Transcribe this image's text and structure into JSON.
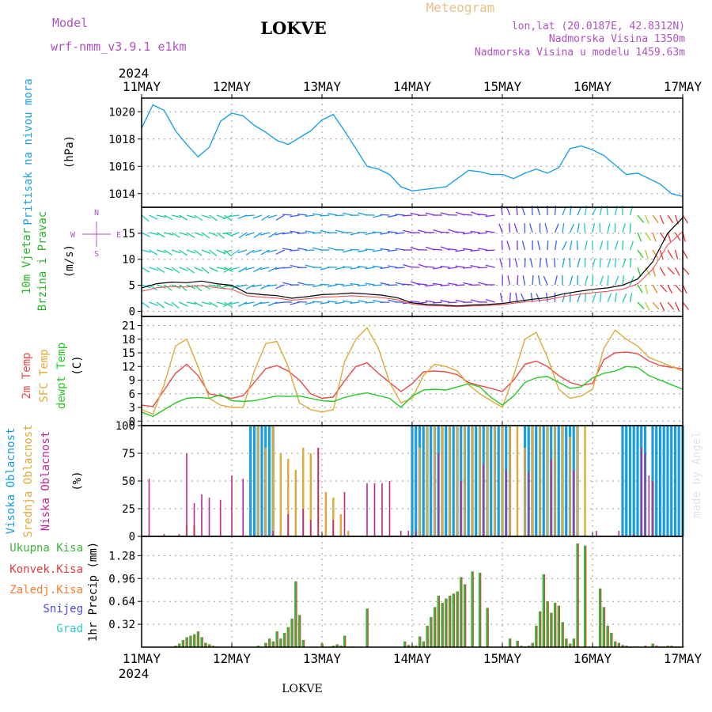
{
  "header": {
    "model_label": "Model",
    "model_name": "wrf-nmm_v3.9.1 e1km",
    "station": "LOKVE",
    "title": "Meteogram",
    "coords": "lon,lat (20.0187E, 42.8312N)",
    "elevation": "Nadmorska Visina 1350m",
    "model_elevation": "Nadmorska Visina u modelu 1459.63m",
    "credit": "made by Angel",
    "footer_station": "LOKVE"
  },
  "colors": {
    "pressure": "#1ea0e6",
    "sfc_temp": "#e0a838",
    "temp_2m": "#e84848",
    "dewpoint": "#28c828",
    "high_cloud": "#1a9ce0",
    "mid_cloud": "#e0a838",
    "low_cloud": "#c02890",
    "precip_total": "#3cb43c",
    "precip_conv": "#e03c3c",
    "precip_frz": "#f08030",
    "snow": "#4848e0",
    "graupel": "#30c8c8",
    "wind_label": "#28b428",
    "axis_purple": "#b050c8"
  },
  "chart_data": [
    {
      "type": "line",
      "title": "Pritisak na nivou mora",
      "ylabel": "Pritisak na nivou mora",
      "unit": "(hPa)",
      "x_ticks": [
        "11MAY",
        "12MAY",
        "13MAY",
        "14MAY",
        "15MAY",
        "16MAY",
        "17MAY"
      ],
      "year": "2024",
      "ylim": [
        1013,
        1021
      ],
      "y_ticks": [
        1014,
        1016,
        1018,
        1020
      ],
      "series": [
        {
          "name": "Pritisak na nivou mora",
          "color": "pressure",
          "x_hours": [
            0,
            3,
            6,
            9,
            12,
            15,
            18,
            21,
            24,
            27,
            30,
            33,
            36,
            39,
            42,
            45,
            48,
            51,
            54,
            57,
            60,
            63,
            66,
            69,
            72,
            75,
            78,
            81,
            84,
            87,
            90,
            93,
            96,
            99,
            102,
            105,
            108,
            111,
            114,
            117,
            120,
            123,
            126,
            129,
            132,
            135,
            138,
            141,
            144
          ],
          "values": [
            1018.8,
            1020.5,
            1020.1,
            1018.6,
            1017.6,
            1016.7,
            1017.4,
            1019.3,
            1019.9,
            1019.7,
            1019.0,
            1018.5,
            1017.9,
            1017.6,
            1018.1,
            1018.6,
            1019.4,
            1019.8,
            1018.6,
            1017.3,
            1016.0,
            1015.8,
            1015.4,
            1014.5,
            1014.2,
            1014.3,
            1014.4,
            1014.5,
            1015.1,
            1015.7,
            1015.6,
            1015.4,
            1015.4,
            1015.1,
            1015.5,
            1015.8,
            1015.5,
            1015.9,
            1017.3,
            1017.5,
            1017.2,
            1016.8,
            1016.1,
            1015.4,
            1015.5,
            1015.1,
            1014.7,
            1014.0,
            1013.8
          ]
        }
      ]
    },
    {
      "type": "line",
      "title": "10m Vjetar Brzina i Pravac",
      "ylabel": "10m Vjetar Brzina i Pravac",
      "unit": "(m/s)",
      "compass": [
        "N",
        "E",
        "S",
        "W"
      ],
      "ylim": [
        -1,
        20
      ],
      "y_ticks": [
        0,
        5,
        10,
        15
      ],
      "series": [
        {
          "name": "10m Vjetar",
          "x_hours": [
            0,
            4,
            8,
            12,
            16,
            20,
            24,
            28,
            32,
            36,
            40,
            44,
            48,
            52,
            56,
            60,
            64,
            68,
            72,
            76,
            80,
            84,
            88,
            92,
            96,
            100,
            104,
            108,
            112,
            116,
            120,
            124,
            128,
            132,
            136,
            140,
            144
          ],
          "values": [
            4.5,
            5.3,
            5.6,
            5.5,
            5.8,
            5.3,
            5.0,
            3.5,
            3.2,
            3.0,
            2.5,
            2.8,
            3.2,
            3.3,
            3.5,
            3.3,
            3.1,
            2.6,
            1.6,
            1.3,
            1.2,
            1.0,
            1.2,
            1.3,
            1.5,
            1.9,
            2.3,
            2.6,
            3.3,
            3.8,
            4.2,
            4.5,
            5.0,
            6.2,
            9.5,
            15.0,
            18.0
          ]
        }
      ]
    },
    {
      "type": "line",
      "title": "2m Temp, SFC Temp, dewpt Temp",
      "unit": "(C)",
      "ylim": [
        -1,
        23
      ],
      "y_ticks": [
        0,
        3,
        6,
        9,
        12,
        15,
        18,
        21
      ],
      "x_hours": [
        0,
        3,
        6,
        9,
        12,
        15,
        18,
        21,
        24,
        27,
        30,
        33,
        36,
        39,
        42,
        45,
        48,
        51,
        54,
        57,
        60,
        63,
        66,
        69,
        72,
        75,
        78,
        81,
        84,
        87,
        90,
        93,
        96,
        99,
        102,
        105,
        108,
        111,
        114,
        117,
        120,
        123,
        126,
        129,
        132,
        135,
        138,
        141,
        144
      ],
      "series": [
        {
          "name": "2m Temp",
          "color": "temp_2m",
          "values": [
            3.5,
            3.2,
            6.8,
            10.5,
            12.5,
            10.0,
            6.0,
            5.5,
            5.0,
            5.6,
            8.5,
            11.5,
            12.2,
            11.0,
            9.0,
            6.0,
            5.0,
            5.3,
            8.8,
            12.0,
            12.8,
            10.5,
            8.5,
            6.5,
            8.2,
            10.8,
            11.0,
            10.8,
            10.2,
            8.5,
            7.8,
            7.2,
            6.5,
            9.0,
            12.5,
            13.2,
            12.0,
            10.0,
            8.5,
            7.8,
            8.3,
            13.5,
            15.0,
            15.2,
            14.8,
            13.2,
            12.2,
            11.8,
            11.5
          ]
        },
        {
          "name": "SFC Temp",
          "color": "sfc_temp",
          "values": [
            2.5,
            1.5,
            8.0,
            16.5,
            18.0,
            12.0,
            5.0,
            3.5,
            3.0,
            3.0,
            11.0,
            17.0,
            17.5,
            12.0,
            4.0,
            2.5,
            2.0,
            2.5,
            13.0,
            18.0,
            20.5,
            16.0,
            8.5,
            4.0,
            5.0,
            10.0,
            12.5,
            12.0,
            11.0,
            8.0,
            6.0,
            4.5,
            3.0,
            10.0,
            18.0,
            19.5,
            14.0,
            7.0,
            5.0,
            5.5,
            7.0,
            16.0,
            20.0,
            18.0,
            16.5,
            14.0,
            13.0,
            12.0,
            11.0
          ]
        },
        {
          "name": "dewpt Temp",
          "color": "dewpoint",
          "values": [
            2.0,
            1.0,
            2.5,
            4.0,
            5.0,
            5.2,
            5.0,
            5.8,
            4.5,
            4.3,
            4.5,
            5.0,
            5.5,
            5.4,
            5.5,
            5.0,
            4.5,
            4.3,
            5.2,
            5.8,
            6.2,
            5.6,
            5.0,
            3.0,
            5.5,
            6.8,
            7.0,
            6.8,
            7.5,
            8.2,
            7.5,
            5.2,
            3.5,
            5.5,
            8.5,
            9.5,
            9.8,
            8.5,
            7.2,
            7.5,
            9.5,
            10.5,
            11.0,
            12.0,
            11.8,
            10.0,
            9.0,
            8.0,
            7.0
          ]
        }
      ]
    },
    {
      "type": "bar",
      "title": "Visoka Oblacnost, Srednja Oblacnost, Niska Oblacnost",
      "unit": "(%)",
      "ylim": [
        0,
        100
      ],
      "y_ticks": [
        0,
        25,
        50,
        75,
        100
      ],
      "series": [
        {
          "name": "Visoka Oblacnost",
          "color": "high_cloud",
          "x_hours": [
            29,
            30,
            31,
            32,
            33,
            34,
            35,
            72,
            73,
            74,
            75,
            76,
            77,
            78,
            79,
            80,
            81,
            82,
            83,
            84,
            85,
            86,
            87,
            88,
            89,
            90,
            91,
            92,
            93,
            94,
            95,
            96,
            97,
            98,
            102,
            103,
            104,
            105,
            106,
            107,
            108,
            109,
            110,
            111,
            112,
            113,
            114,
            115,
            116,
            128,
            129,
            130,
            131,
            132,
            133,
            134,
            136,
            137,
            138,
            139,
            140,
            141,
            142,
            143,
            144
          ],
          "values": [
            100,
            100,
            100,
            100,
            100,
            100,
            100,
            100,
            100,
            100,
            100,
            100,
            100,
            100,
            100,
            100,
            100,
            100,
            100,
            100,
            100,
            100,
            100,
            100,
            100,
            100,
            100,
            100,
            100,
            100,
            100,
            100,
            100,
            100,
            100,
            100,
            100,
            100,
            100,
            100,
            100,
            100,
            100,
            100,
            100,
            100,
            100,
            100,
            100,
            100,
            100,
            100,
            100,
            100,
            100,
            100,
            100,
            100,
            100,
            100,
            100,
            100,
            100,
            100,
            100
          ]
        },
        {
          "name": "Srednja Oblacnost",
          "color": "mid_cloud",
          "x_hours": [
            12,
            14,
            31,
            33,
            35,
            37,
            39,
            41,
            43,
            45,
            47,
            49,
            51,
            53,
            55,
            74,
            76,
            78,
            80,
            82,
            84,
            86,
            88,
            90,
            92,
            94,
            96,
            98,
            100,
            102,
            104,
            106,
            108,
            110,
            112,
            114,
            116,
            118
          ],
          "values": [
            10,
            10,
            100,
            80,
            100,
            75,
            70,
            60,
            80,
            75,
            80,
            40,
            35,
            20,
            5,
            80,
            100,
            100,
            100,
            100,
            100,
            100,
            100,
            100,
            100,
            100,
            100,
            100,
            100,
            80,
            100,
            100,
            100,
            100,
            100,
            90,
            100,
            100
          ]
        },
        {
          "name": "Niska Oblacnost",
          "color": "low_cloud",
          "x_hours": [
            2,
            6,
            10,
            12,
            14,
            16,
            18,
            21,
            24,
            27,
            35,
            39,
            43,
            45,
            47,
            51,
            54,
            60,
            62,
            64,
            66,
            69,
            71,
            73,
            79,
            85,
            91,
            97,
            103,
            109,
            115,
            121,
            127,
            131,
            133,
            134,
            135,
            136
          ],
          "values": [
            52,
            2,
            2,
            75,
            30,
            38,
            35,
            33,
            55,
            52,
            5,
            20,
            25,
            15,
            80,
            15,
            40,
            48,
            48,
            48,
            50,
            5,
            5,
            5,
            75,
            50,
            65,
            60,
            58,
            70,
            60,
            5,
            5,
            2,
            80,
            75,
            55,
            50
          ]
        }
      ]
    },
    {
      "type": "bar",
      "title": "Ukupna Kisa, Konvek.Kisa, Zaledj.Kisa, Snijeg, Grad",
      "ylabel": "1hr Precip",
      "unit": "(mm)",
      "ylim": [
        0,
        1.55
      ],
      "y_ticks": [
        0.32,
        0.64,
        0.96,
        1.28
      ],
      "series": [
        {
          "name": "Ukupna Kisa",
          "color": "precip_total",
          "x_hours": [
            9,
            10,
            11,
            12,
            13,
            14,
            15,
            16,
            17,
            18,
            19,
            20,
            31,
            33,
            34,
            35,
            36,
            37,
            38,
            39,
            40,
            41,
            42,
            43,
            48,
            51,
            52,
            53,
            54,
            56,
            60,
            70,
            71,
            72,
            73,
            74,
            75,
            76,
            77,
            78,
            79,
            80,
            81,
            82,
            83,
            84,
            85,
            86,
            88,
            90,
            92,
            98,
            100,
            101,
            102,
            103,
            104,
            105,
            106,
            107,
            108,
            109,
            110,
            111,
            112,
            113,
            114,
            115,
            116,
            118,
            122,
            123,
            124,
            125,
            126,
            127,
            128,
            129,
            130,
            131,
            132,
            134,
            136,
            137,
            138,
            139,
            140,
            141,
            142,
            143,
            144
          ],
          "values": [
            0.02,
            0.05,
            0.1,
            0.14,
            0.16,
            0.18,
            0.22,
            0.14,
            0.06,
            0.04,
            0.02,
            0.01,
            0.02,
            0.06,
            0.12,
            0.08,
            0.22,
            0.12,
            0.2,
            0.28,
            0.4,
            0.92,
            0.45,
            0.1,
            0.05,
            0.02,
            0.04,
            0.02,
            0.16,
            0.01,
            0.54,
            0.08,
            0.03,
            0.02,
            0.02,
            0.15,
            0.08,
            0.3,
            0.42,
            0.56,
            0.72,
            0.62,
            0.68,
            0.72,
            0.75,
            0.78,
            0.98,
            0.88,
            1.06,
            1.04,
            0.55,
            0.12,
            0.09,
            0.02,
            0.01,
            0.02,
            0.06,
            0.3,
            0.5,
            1.02,
            0.64,
            0.48,
            0.62,
            0.58,
            0.35,
            0.12,
            0.05,
            0.12,
            1.45,
            1.42,
            0.82,
            0.56,
            0.3,
            0.2,
            0.08,
            0.06,
            0.03,
            0.02,
            0.01,
            0.01,
            0.01,
            0.02,
            0.05,
            0.02,
            0.01,
            0.01,
            0.02,
            0.02,
            0.01,
            0.01,
            0.01
          ]
        },
        {
          "name": "Konvek.Kisa",
          "color": "precip_conv",
          "x_hours": [],
          "values": []
        },
        {
          "name": "Zaledj.Kisa",
          "color": "precip_frz",
          "x_hours": [],
          "values": []
        },
        {
          "name": "Snijeg",
          "color": "snow",
          "x_hours": [],
          "values": []
        },
        {
          "name": "Grad",
          "color": "graupel",
          "x_hours": [],
          "values": []
        }
      ]
    }
  ]
}
